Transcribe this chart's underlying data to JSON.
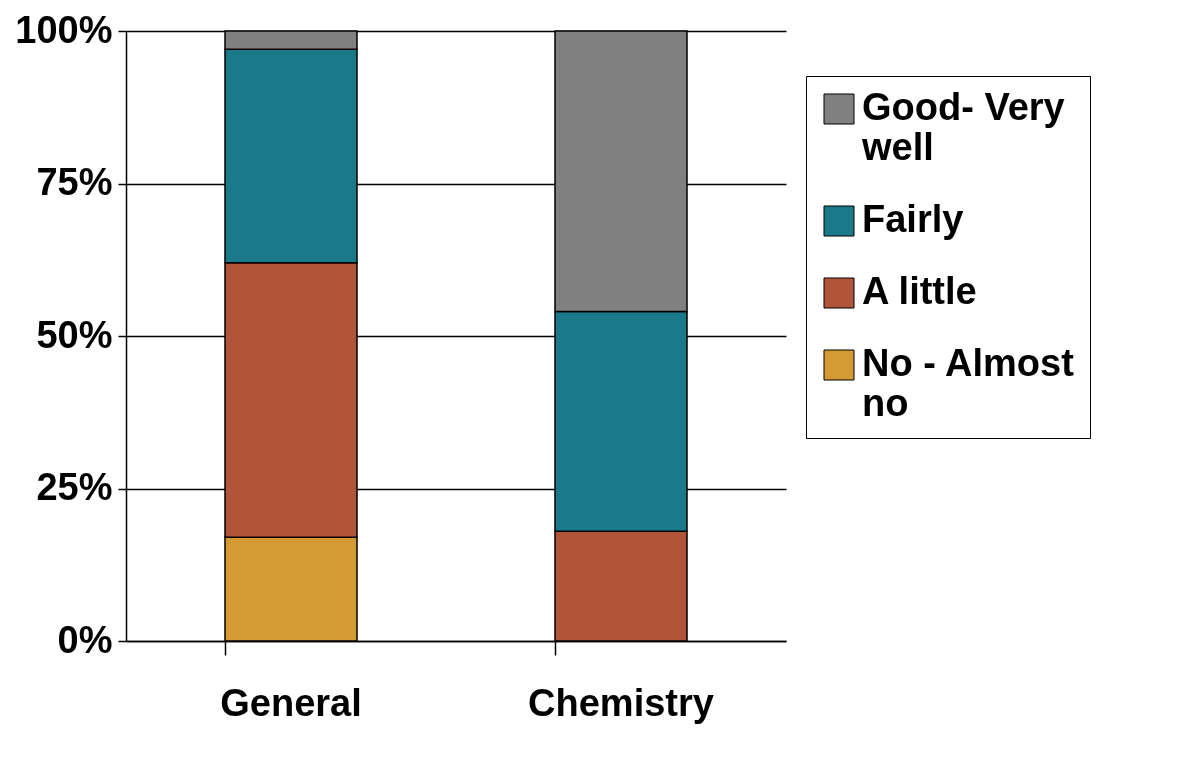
{
  "chart_data": {
    "type": "bar",
    "stacked": true,
    "categories": [
      "General",
      "Chemistry"
    ],
    "series": [
      {
        "name": "No - Almost no",
        "color": "#d49b35",
        "values": [
          17,
          0
        ]
      },
      {
        "name": "A little",
        "color": "#b2543a",
        "values": [
          45,
          18
        ]
      },
      {
        "name": "Fairly",
        "color": "#1b7a8a",
        "values": [
          35,
          36
        ]
      },
      {
        "name": "Good- Very well",
        "color": "#808080",
        "values": [
          3,
          46
        ]
      }
    ],
    "ylim": [
      0,
      100
    ],
    "yticks": [
      {
        "value": 0,
        "label": "0%"
      },
      {
        "value": 25,
        "label": "25%"
      },
      {
        "value": 50,
        "label": "50%"
      },
      {
        "value": 75,
        "label": "75%"
      },
      {
        "value": 100,
        "label": "100%"
      }
    ],
    "grid": "y",
    "legend": "right"
  }
}
